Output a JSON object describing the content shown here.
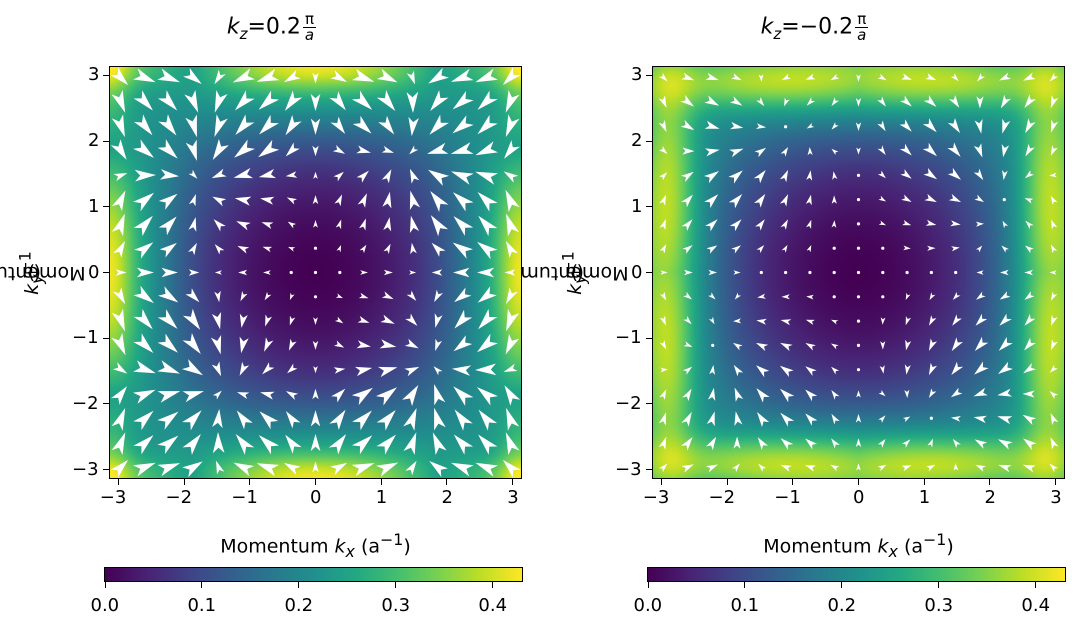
{
  "chart_data": [
    {
      "type": "heatmap",
      "title_prefix": "k",
      "title_sub": "z",
      "title_value": "=0.2",
      "title_frac_num": "π",
      "title_frac_den": "a",
      "kz_sign": 1,
      "xlabel": "Momentum k_x (a⁻¹)",
      "xlabel_main": "Momentum ",
      "xlabel_var": "k",
      "xlabel_sub": "x",
      "xlabel_unit": " (a",
      "xlabel_sup": "−1",
      "xlabel_close": ")",
      "ylabel_main": "Momentum ",
      "ylabel_var": "k",
      "ylabel_sub": "y",
      "ylabel_unit": " (a",
      "ylabel_sup": "−1",
      "ylabel_close": ")",
      "xlim": [
        -3.1416,
        3.1416
      ],
      "ylim": [
        -3.1416,
        3.1416
      ],
      "xticks": [
        -3,
        -2,
        -1,
        0,
        1,
        2,
        3
      ],
      "yticks": [
        -3,
        -2,
        -1,
        0,
        1,
        2,
        3
      ],
      "xtick_labels": [
        "−3",
        "−2",
        "−1",
        "0",
        "1",
        "2",
        "3"
      ],
      "ytick_labels": [
        "−3",
        "−2",
        "−1",
        "0",
        "1",
        "2",
        "3"
      ],
      "colormap": "viridis",
      "color_range": [
        0,
        0.43
      ],
      "colorbar_ticks": [
        0.0,
        0.1,
        0.2,
        0.3,
        0.4
      ],
      "colorbar_tick_labels": [
        "0.0",
        "0.1",
        "0.2",
        "0.3",
        "0.4"
      ],
      "quiver": {
        "grid_points": 17,
        "color": "#ffffff"
      }
    },
    {
      "type": "heatmap",
      "title_prefix": "k",
      "title_sub": "z",
      "title_value": "=−0.2",
      "title_frac_num": "π",
      "title_frac_den": "a",
      "kz_sign": -1,
      "xlabel_main": "Momentum ",
      "xlabel_var": "k",
      "xlabel_sub": "x",
      "xlabel_unit": " (a",
      "xlabel_sup": "−1",
      "xlabel_close": ")",
      "ylabel_main": "Momentum ",
      "ylabel_var": "k",
      "ylabel_sub": "y",
      "ylabel_unit": " (a",
      "ylabel_sup": "−1",
      "ylabel_close": ")",
      "xlim": [
        -3.1416,
        3.1416
      ],
      "ylim": [
        -3.1416,
        3.1416
      ],
      "xticks": [
        -3,
        -2,
        -1,
        0,
        1,
        2,
        3
      ],
      "yticks": [
        -3,
        -2,
        -1,
        0,
        1,
        2,
        3
      ],
      "xtick_labels": [
        "−3",
        "−2",
        "−1",
        "0",
        "1",
        "2",
        "3"
      ],
      "ytick_labels": [
        "−3",
        "−2",
        "−1",
        "0",
        "1",
        "2",
        "3"
      ],
      "colormap": "viridis",
      "color_range": [
        0,
        0.43
      ],
      "colorbar_ticks": [
        0.0,
        0.1,
        0.2,
        0.3,
        0.4
      ],
      "colorbar_tick_labels": [
        "0.0",
        "0.1",
        "0.2",
        "0.3",
        "0.4"
      ],
      "quiver": {
        "grid_points": 17,
        "color": "#ffffff"
      }
    }
  ]
}
